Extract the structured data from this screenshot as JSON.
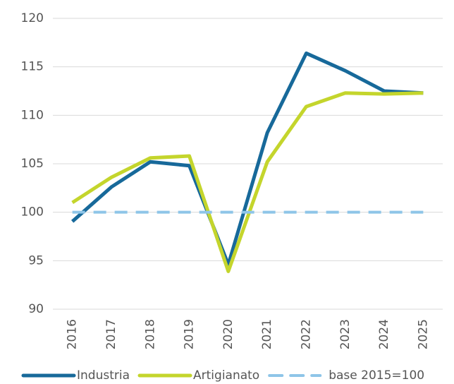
{
  "chart_data": {
    "type": "line",
    "categories": [
      "2016",
      "2017",
      "2018",
      "2019",
      "2020",
      "2021",
      "2022",
      "2023",
      "2024",
      "2025"
    ],
    "series": [
      {
        "name": "Industria",
        "color": "#17699a",
        "values": [
          99.05,
          102.6,
          105.2,
          104.8,
          94.6,
          108.2,
          116.4,
          114.6,
          112.5,
          112.3
        ]
      },
      {
        "name": "Artigianato",
        "color": "#c4d52c",
        "values": [
          101.0,
          103.6,
          105.6,
          105.8,
          93.9,
          105.2,
          110.9,
          112.3,
          112.2,
          112.3
        ]
      },
      {
        "name": "base 2015=100",
        "color": "#8ec5e8",
        "dashed": true,
        "values": [
          100,
          100,
          100,
          100,
          100,
          100,
          100,
          100,
          100,
          100
        ]
      }
    ],
    "ylim": [
      90,
      120
    ],
    "yticks": [
      90,
      95,
      100,
      105,
      110,
      115,
      120
    ],
    "grid": true,
    "legend": "bottom"
  }
}
